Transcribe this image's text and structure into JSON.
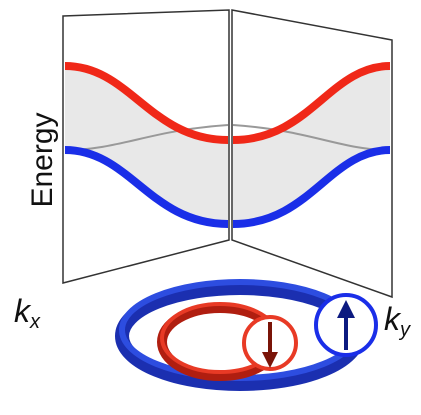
{
  "labels": {
    "energy": "Energy",
    "kx": {
      "base": "k",
      "sub": "x"
    },
    "ky": {
      "base": "k",
      "sub": "y"
    }
  }
}
